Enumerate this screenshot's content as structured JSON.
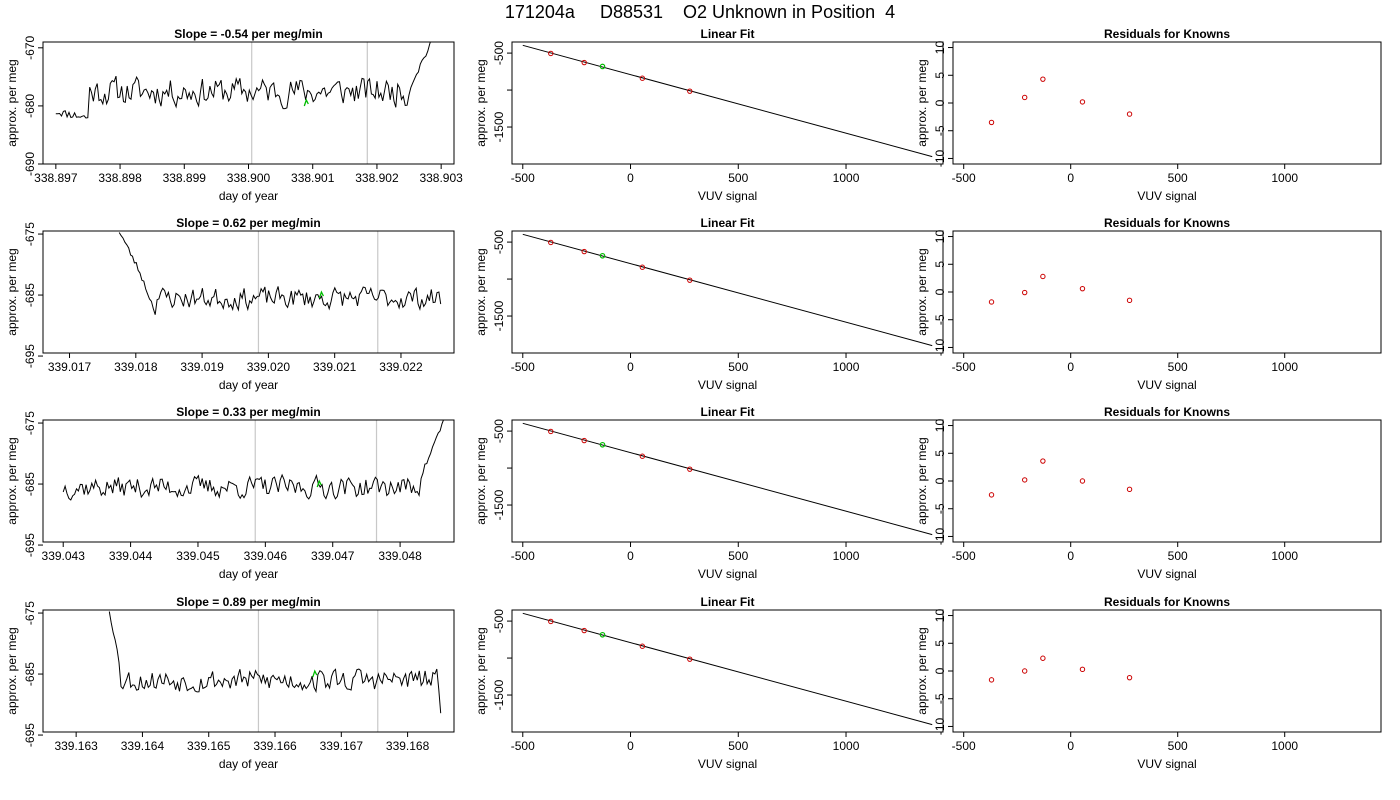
{
  "figure": {
    "title": "171204a     D88531    O2 Unknown in Position  4",
    "colors": {
      "line": "#000000",
      "known": "#cc0000",
      "unknown": "#00bb00",
      "marker": "#c8c8c8"
    }
  },
  "chart_data": [
    {
      "type": "line",
      "row": 0,
      "col": 0,
      "title": "Slope =  -0.54  per meg/min",
      "xlabel": "day of year",
      "ylabel": "approx. per meg",
      "xlim": [
        338.8968,
        338.9032
      ],
      "ylim": [
        -690,
        -669
      ],
      "xticks": [
        338.897,
        338.898,
        338.899,
        338.9,
        338.901,
        338.902,
        338.903
      ],
      "xtick_labels": [
        "338.897",
        "338.898",
        "338.899",
        "338.900",
        "338.901",
        "338.902",
        "338.903"
      ],
      "yticks": [
        -670,
        -680,
        -690
      ],
      "ytick_labels": [
        "-670",
        "-680",
        "-690"
      ],
      "vlines": [
        338.90005,
        338.90185
      ],
      "series": [
        {
          "x_start": 338.897,
          "x_end": 338.90285,
          "y_start": -681,
          "y_end": -669,
          "mean": -677.5,
          "noise": 2.2,
          "seed": 11,
          "points": 200,
          "segments": [
            {
              "x_from": 338.897,
              "x_to": 338.8975,
              "y_from": -681,
              "y_to": -682
            },
            {
              "x_from": 338.9025,
              "x_to": 338.90285,
              "y_from": -677,
              "y_to": -669
            }
          ]
        }
      ],
      "unknown_x": 338.9009,
      "unknown_y": -679.5
    },
    {
      "type": "scatter",
      "row": 0,
      "col": 1,
      "title": "Linear Fit",
      "xlabel": "VUV signal",
      "ylabel": "approx. per meg",
      "xlim": [
        -550,
        1450
      ],
      "ylim": [
        -2000,
        -350
      ],
      "xticks": [
        -500,
        0,
        500,
        1000
      ],
      "xtick_labels": [
        "-500",
        "0",
        "500",
        "1000"
      ],
      "yticks": [
        -500,
        -1000,
        -1500
      ],
      "ytick_labels": [
        "-500",
        "",
        "-1500"
      ],
      "fit_line": {
        "x": [
          -500,
          1400
        ],
        "y": [
          -395,
          -1900
        ]
      },
      "knowns": {
        "x": [
          -370,
          -215,
          55,
          275
        ],
        "y": [
          -505,
          -628,
          -840,
          -1015
        ]
      },
      "unknown": {
        "x": [
          -130
        ],
        "y": [
          -681
        ]
      }
    },
    {
      "type": "scatter",
      "row": 0,
      "col": 2,
      "title": "Residuals for Knowns",
      "xlabel": "VUV signal",
      "ylabel": "approx. per meg",
      "xlim": [
        -550,
        1450
      ],
      "ylim": [
        -11,
        11
      ],
      "xticks": [
        -500,
        0,
        500,
        1000
      ],
      "xtick_labels": [
        "-500",
        "0",
        "500",
        "1000"
      ],
      "yticks": [
        10,
        5,
        0,
        -5,
        -10
      ],
      "ytick_labels": [
        "10",
        "5",
        "0",
        "-5",
        "-10"
      ],
      "points": {
        "x": [
          -370,
          -215,
          -130,
          55,
          275
        ],
        "y": [
          -3.5,
          1.0,
          4.3,
          0.2,
          -2.0
        ]
      }
    },
    {
      "type": "line",
      "row": 1,
      "col": 0,
      "title": "Slope =  0.62  per meg/min",
      "xlabel": "day of year",
      "ylabel": "approx. per meg",
      "xlim": [
        339.0166,
        339.0228
      ],
      "ylim": [
        -694.5,
        -674.5
      ],
      "xticks": [
        339.017,
        339.018,
        339.019,
        339.02,
        339.021,
        339.022
      ],
      "xtick_labels": [
        "339.017",
        "339.018",
        "339.019",
        "339.020",
        "339.021",
        "339.022"
      ],
      "yticks": [
        -675,
        -685,
        -695
      ],
      "ytick_labels": [
        "-675",
        "-685",
        "-695"
      ],
      "vlines": [
        339.01985,
        339.02165
      ],
      "series": [
        {
          "x_start": 339.01775,
          "x_end": 339.0226,
          "y_start": -674.5,
          "y_end": -686,
          "mean": -685.5,
          "noise": 1.6,
          "seed": 23,
          "points": 170,
          "segments": [
            {
              "x_from": 339.01775,
              "x_to": 339.01805,
              "y_from": -674.5,
              "y_to": -681
            },
            {
              "x_from": 339.01805,
              "x_to": 339.0183,
              "y_from": -681,
              "y_to": -688
            }
          ]
        }
      ],
      "unknown_x": 339.0208,
      "unknown_y": -685
    },
    {
      "type": "scatter",
      "row": 1,
      "col": 1,
      "title": "Linear Fit",
      "xlabel": "VUV signal",
      "ylabel": "approx. per meg",
      "xlim": [
        -550,
        1450
      ],
      "ylim": [
        -2000,
        -350
      ],
      "xticks": [
        -500,
        0,
        500,
        1000
      ],
      "xtick_labels": [
        "-500",
        "0",
        "500",
        "1000"
      ],
      "yticks": [
        -500,
        -1000,
        -1500
      ],
      "ytick_labels": [
        "-500",
        "",
        "-1500"
      ],
      "fit_line": {
        "x": [
          -500,
          1400
        ],
        "y": [
          -395,
          -1900
        ]
      },
      "knowns": {
        "x": [
          -370,
          -215,
          55,
          275
        ],
        "y": [
          -505,
          -628,
          -840,
          -1015
        ]
      },
      "unknown": {
        "x": [
          -130
        ],
        "y": [
          -685
        ]
      }
    },
    {
      "type": "scatter",
      "row": 1,
      "col": 2,
      "title": "Residuals for Knowns",
      "xlabel": "VUV signal",
      "ylabel": "approx. per meg",
      "xlim": [
        -550,
        1450
      ],
      "ylim": [
        -11,
        11
      ],
      "xticks": [
        -500,
        0,
        500,
        1000
      ],
      "xtick_labels": [
        "-500",
        "0",
        "500",
        "1000"
      ],
      "yticks": [
        10,
        5,
        0,
        -5,
        -10
      ],
      "ytick_labels": [
        "10",
        "5",
        "0",
        "-5",
        "-10"
      ],
      "points": {
        "x": [
          -370,
          -215,
          -130,
          55,
          275
        ],
        "y": [
          -1.8,
          -0.1,
          2.8,
          0.6,
          -1.5
        ]
      }
    },
    {
      "type": "line",
      "row": 2,
      "col": 0,
      "title": "Slope =  0.33  per meg/min",
      "xlabel": "day of year",
      "ylabel": "approx. per meg",
      "xlim": [
        339.0427,
        339.0488
      ],
      "ylim": [
        -694.5,
        -674.5
      ],
      "xticks": [
        339.043,
        339.044,
        339.045,
        339.046,
        339.047,
        339.048
      ],
      "xtick_labels": [
        "339.043",
        "339.044",
        "339.045",
        "339.046",
        "339.047",
        "339.048"
      ],
      "yticks": [
        -675,
        -685,
        -695
      ],
      "ytick_labels": [
        "-675",
        "-685",
        "-695"
      ],
      "vlines": [
        339.04585,
        339.04765
      ],
      "series": [
        {
          "x_start": 339.043,
          "x_end": 339.04865,
          "y_start": -685.5,
          "y_end": -674.5,
          "mean": -685.5,
          "noise": 1.6,
          "seed": 37,
          "points": 200,
          "segments": [
            {
              "x_from": 339.0483,
              "x_to": 339.04865,
              "y_from": -684,
              "y_to": -674.5
            }
          ]
        }
      ],
      "unknown_x": 339.0468,
      "unknown_y": -685
    },
    {
      "type": "scatter",
      "row": 2,
      "col": 1,
      "title": "Linear Fit",
      "xlabel": "VUV signal",
      "ylabel": "approx. per meg",
      "xlim": [
        -550,
        1450
      ],
      "ylim": [
        -2000,
        -350
      ],
      "xticks": [
        -500,
        0,
        500,
        1000
      ],
      "xtick_labels": [
        "-500",
        "0",
        "500",
        "1000"
      ],
      "yticks": [
        -500,
        -1000,
        -1500
      ],
      "ytick_labels": [
        "-500",
        "",
        "-1500"
      ],
      "fit_line": {
        "x": [
          -500,
          1400
        ],
        "y": [
          -395,
          -1900
        ]
      },
      "knowns": {
        "x": [
          -370,
          -215,
          55,
          275
        ],
        "y": [
          -505,
          -628,
          -840,
          -1015
        ]
      },
      "unknown": {
        "x": [
          -130
        ],
        "y": [
          -685
        ]
      }
    },
    {
      "type": "scatter",
      "row": 2,
      "col": 2,
      "title": "Residuals for Knowns",
      "xlabel": "VUV signal",
      "ylabel": "approx. per meg",
      "xlim": [
        -550,
        1450
      ],
      "ylim": [
        -11,
        11
      ],
      "xticks": [
        -500,
        0,
        500,
        1000
      ],
      "xtick_labels": [
        "-500",
        "0",
        "500",
        "1000"
      ],
      "yticks": [
        10,
        5,
        0,
        -5,
        -10
      ],
      "ytick_labels": [
        "10",
        "5",
        "0",
        "-5",
        "-10"
      ],
      "points": {
        "x": [
          -370,
          -215,
          -130,
          55,
          275
        ],
        "y": [
          -2.5,
          0.2,
          3.6,
          0.0,
          -1.5
        ]
      }
    },
    {
      "type": "line",
      "row": 3,
      "col": 0,
      "title": "Slope =  0.89  per meg/min",
      "xlabel": "day of year",
      "ylabel": "approx. per meg",
      "xlim": [
        339.1625,
        339.1687
      ],
      "ylim": [
        -694.5,
        -674.5
      ],
      "xticks": [
        339.163,
        339.164,
        339.165,
        339.166,
        339.167,
        339.168
      ],
      "xtick_labels": [
        "339.163",
        "339.164",
        "339.165",
        "339.166",
        "339.167",
        "339.168"
      ],
      "yticks": [
        -675,
        -685,
        -695
      ],
      "ytick_labels": [
        "-675",
        "-685",
        "-695"
      ],
      "vlines": [
        339.16575,
        339.16755
      ],
      "series": [
        {
          "x_start": 339.1635,
          "x_end": 339.1685,
          "y_start": -674.5,
          "y_end": -691,
          "mean": -686,
          "noise": 1.7,
          "seed": 53,
          "points": 170,
          "segments": [
            {
              "x_from": 339.1635,
              "x_to": 339.16365,
              "y_from": -674.5,
              "y_to": -683
            },
            {
              "x_from": 339.16845,
              "x_to": 339.1685,
              "y_from": -686,
              "y_to": -691
            }
          ]
        }
      ],
      "unknown_x": 339.1666,
      "unknown_y": -685
    },
    {
      "type": "scatter",
      "row": 3,
      "col": 1,
      "title": "Linear Fit",
      "xlabel": "VUV signal",
      "ylabel": "approx. per meg",
      "xlim": [
        -550,
        1450
      ],
      "ylim": [
        -2000,
        -350
      ],
      "xticks": [
        -500,
        0,
        500,
        1000
      ],
      "xtick_labels": [
        "-500",
        "0",
        "500",
        "1000"
      ],
      "yticks": [
        -500,
        -1000,
        -1500
      ],
      "ytick_labels": [
        "-500",
        "",
        "-1500"
      ],
      "fit_line": {
        "x": [
          -500,
          1400
        ],
        "y": [
          -395,
          -1900
        ]
      },
      "knowns": {
        "x": [
          -370,
          -215,
          55,
          275
        ],
        "y": [
          -505,
          -628,
          -840,
          -1015
        ]
      },
      "unknown": {
        "x": [
          -130
        ],
        "y": [
          -685
        ]
      }
    },
    {
      "type": "scatter",
      "row": 3,
      "col": 2,
      "title": "Residuals for Knowns",
      "xlabel": "VUV signal",
      "ylabel": "approx. per meg",
      "xlim": [
        -550,
        1450
      ],
      "ylim": [
        -11,
        11
      ],
      "xticks": [
        -500,
        0,
        500,
        1000
      ],
      "xtick_labels": [
        "-500",
        "0",
        "500",
        "1000"
      ],
      "yticks": [
        10,
        5,
        0,
        -5,
        -10
      ],
      "ytick_labels": [
        "10",
        "5",
        "0",
        "-5",
        "-10"
      ],
      "points": {
        "x": [
          -370,
          -215,
          -130,
          55,
          275
        ],
        "y": [
          -1.6,
          0.0,
          2.3,
          0.3,
          -1.2
        ]
      }
    }
  ]
}
